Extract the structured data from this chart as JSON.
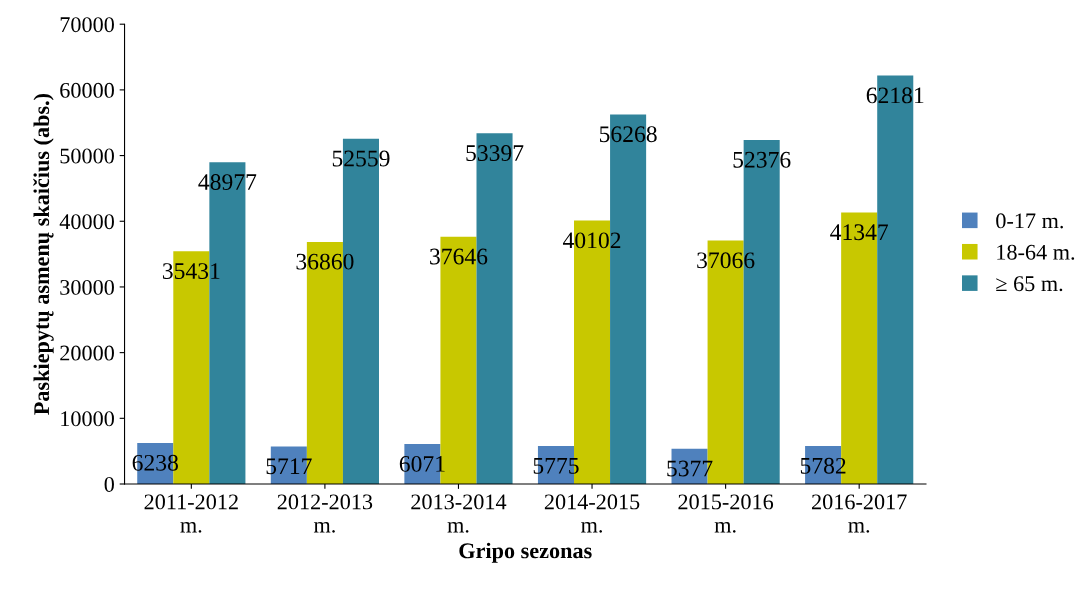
{
  "chart_data": {
    "type": "bar",
    "xlabel": "Gripo sezonas",
    "ylabel": "Paskiepytų asmenų skaičius (abs.)",
    "categories": [
      "2011-2012\nm.",
      "2012-2013\nm.",
      "2013-2014\nm.",
      "2014-2015\nm.",
      "2015-2016\nm.",
      "2016-2017\nm."
    ],
    "series": [
      {
        "name": "0-17 m.",
        "color": "#4f81bd",
        "values": [
          6238,
          5717,
          6071,
          5775,
          5377,
          5782
        ]
      },
      {
        "name": "18-64 m.",
        "color": "#c8c800",
        "values": [
          35431,
          36860,
          37646,
          40102,
          37066,
          41347
        ]
      },
      {
        "name": "≥ 65 m.",
        "color": "#31849b",
        "values": [
          48977,
          52559,
          53397,
          56268,
          52376,
          62181
        ]
      }
    ],
    "ylim": [
      0,
      70000
    ],
    "yticks": [
      0,
      10000,
      20000,
      30000,
      40000,
      50000,
      60000,
      70000
    ],
    "data_labels": true,
    "grid": false,
    "legend": "right"
  }
}
